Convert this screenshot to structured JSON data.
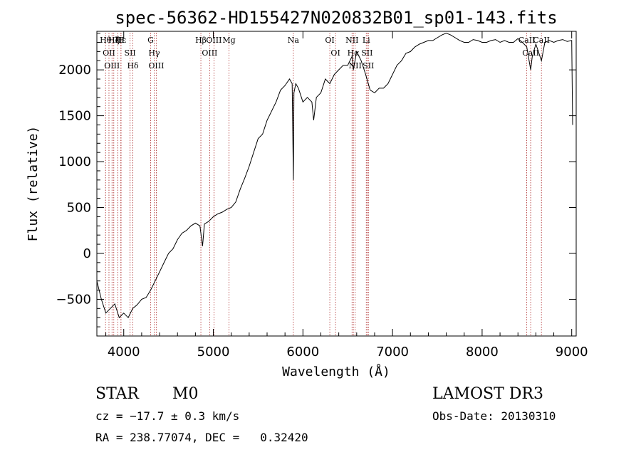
{
  "chart_data": {
    "type": "line",
    "title": "spec-56362-HD155427N020832B01_sp01-143.fits",
    "xlabel": "Wavelength (Å)",
    "ylabel": "Flux (relative)",
    "xlim": [
      3700,
      9050
    ],
    "ylim": [
      -900,
      2420
    ],
    "x_ticks": [
      4000,
      5000,
      6000,
      7000,
      8000,
      9000
    ],
    "x_tick_labels": [
      "4000",
      "5000",
      "6000",
      "7000",
      "8000",
      "9000"
    ],
    "y_ticks": [
      -500,
      0,
      500,
      1000,
      1500,
      2000
    ],
    "y_tick_labels": [
      "−500",
      "0",
      "500",
      "1000",
      "1500",
      "2000"
    ],
    "grid": false,
    "line_color": "#000000",
    "marker_color": "#aa2222",
    "series": [
      {
        "x": [
          3700,
          3750,
          3800,
          3850,
          3900,
          3950,
          4000,
          4050,
          4100,
          4150,
          4200,
          4250,
          4300,
          4350,
          4400,
          4450,
          4500,
          4550,
          4600,
          4650,
          4700,
          4750,
          4800,
          4850,
          4880,
          4900,
          4950,
          5000,
          5050,
          5100,
          5150,
          5200,
          5250,
          5300,
          5350,
          5400,
          5450,
          5500,
          5550,
          5600,
          5650,
          5700,
          5750,
          5800,
          5850,
          5880,
          5893,
          5900,
          5920,
          5950,
          6000,
          6050,
          6100,
          6120,
          6150,
          6200,
          6250,
          6300,
          6350,
          6400,
          6450,
          6500,
          6550,
          6563,
          6600,
          6650,
          6700,
          6750,
          6800,
          6850,
          6900,
          6950,
          7000,
          7050,
          7100,
          7150,
          7200,
          7250,
          7300,
          7350,
          7400,
          7450,
          7500,
          7550,
          7600,
          7650,
          7700,
          7750,
          7800,
          7850,
          7900,
          7950,
          8000,
          8050,
          8100,
          8150,
          8200,
          8250,
          8300,
          8350,
          8400,
          8450,
          8498,
          8542,
          8560,
          8600,
          8662,
          8700,
          8750,
          8800,
          8850,
          8900,
          8950,
          9000,
          9010
        ],
        "y": [
          -300,
          -500,
          -650,
          -600,
          -550,
          -700,
          -650,
          -700,
          -600,
          -560,
          -500,
          -480,
          -400,
          -300,
          -200,
          -100,
          0,
          50,
          150,
          220,
          250,
          300,
          330,
          300,
          80,
          320,
          350,
          400,
          430,
          450,
          480,
          500,
          560,
          700,
          820,
          950,
          1100,
          1250,
          1300,
          1450,
          1550,
          1650,
          1780,
          1830,
          1900,
          1850,
          800,
          1750,
          1850,
          1800,
          1650,
          1700,
          1650,
          1450,
          1700,
          1750,
          1900,
          1850,
          1950,
          2000,
          2050,
          2050,
          2150,
          2000,
          2200,
          2100,
          1950,
          1780,
          1750,
          1800,
          1800,
          1850,
          1950,
          2050,
          2100,
          2180,
          2200,
          2250,
          2280,
          2300,
          2320,
          2320,
          2350,
          2380,
          2400,
          2380,
          2350,
          2320,
          2300,
          2300,
          2330,
          2320,
          2300,
          2300,
          2320,
          2330,
          2300,
          2320,
          2300,
          2300,
          2340,
          2300,
          2250,
          2000,
          2150,
          2280,
          2100,
          2300,
          2320,
          2300,
          2320,
          2330,
          2310,
          2320,
          1400
        ]
      }
    ],
    "line_markers": [
      {
        "x": 3797,
        "label": "Hθ"
      },
      {
        "x": 3835,
        "label": "OII"
      },
      {
        "x": 3869,
        "label": "OIII"
      },
      {
        "x": 3889,
        "label": "Hζ"
      },
      {
        "x": 3933,
        "label": "K"
      },
      {
        "x": 3968,
        "label": "Hε"
      },
      {
        "x": 3970,
        "label": "H"
      },
      {
        "x": 4071,
        "label": "SII"
      },
      {
        "x": 4102,
        "label": "Hδ"
      },
      {
        "x": 4300,
        "label": "G"
      },
      {
        "x": 4340,
        "label": "Hγ"
      },
      {
        "x": 4363,
        "label": "OIII"
      },
      {
        "x": 4861,
        "label": "Hβ"
      },
      {
        "x": 4959,
        "label": "OIII"
      },
      {
        "x": 5007,
        "label": "OIII"
      },
      {
        "x": 5175,
        "label": "Mg"
      },
      {
        "x": 5893,
        "label": "Na"
      },
      {
        "x": 6300,
        "label": "OI"
      },
      {
        "x": 6364,
        "label": "OI"
      },
      {
        "x": 6548,
        "label": "NII"
      },
      {
        "x": 6563,
        "label": "Hα"
      },
      {
        "x": 6583,
        "label": "NII"
      },
      {
        "x": 6707,
        "label": "Li"
      },
      {
        "x": 6716,
        "label": "SII"
      },
      {
        "x": 6731,
        "label": "SII"
      },
      {
        "x": 8498,
        "label": "CaII"
      },
      {
        "x": 8542,
        "label": "CaII"
      },
      {
        "x": 8662,
        "label": "CaII"
      }
    ]
  },
  "info": {
    "class": "STAR",
    "subclass": "M0",
    "survey": "LAMOST DR3",
    "cz": "cz = −17.7 ± 0.3 km/s",
    "obs_date": "Obs-Date: 20130310",
    "coords": "RA = 238.77074, DEC =   0.32420"
  }
}
